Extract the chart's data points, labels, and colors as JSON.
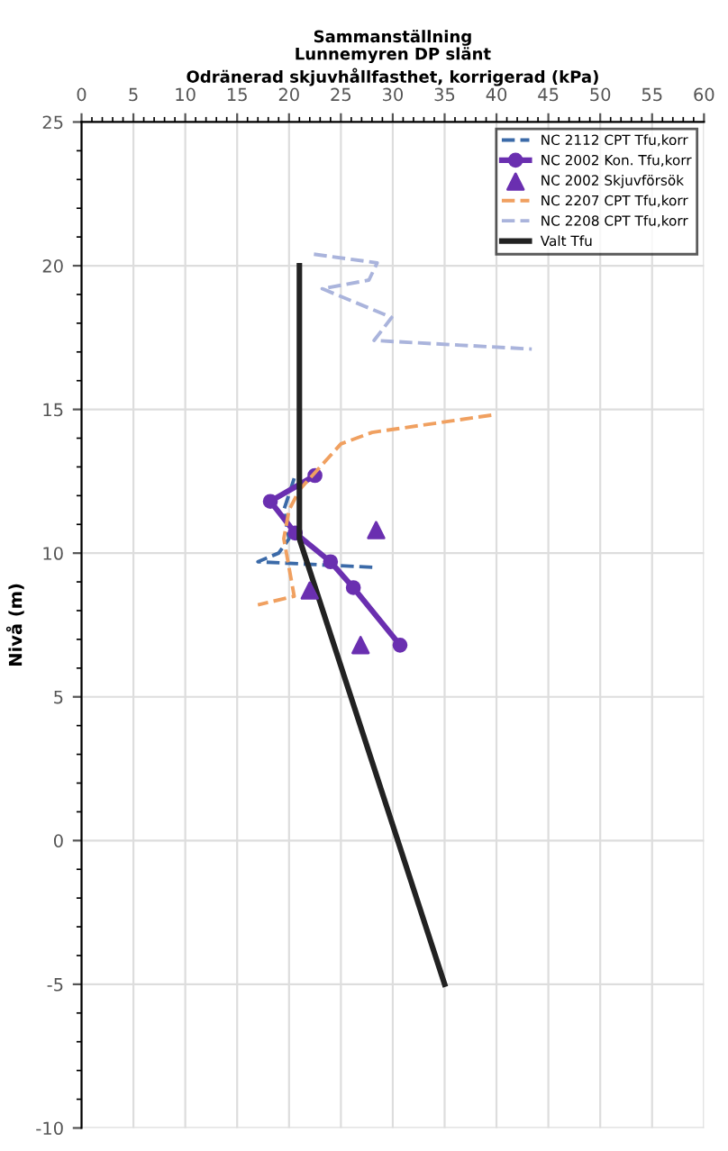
{
  "chart_data": {
    "type": "line",
    "title": "Sammanställning\nLunnemyren DP slänt",
    "xlabel": "Odränerad skjuvhållfasthet, korrigerad (kPa)",
    "ylabel": "Nivå (m)",
    "xlim": [
      0,
      60
    ],
    "xticks": [
      0,
      5,
      10,
      15,
      20,
      25,
      30,
      35,
      40,
      45,
      50,
      55,
      60
    ],
    "ylim": [
      -10,
      25
    ],
    "yticks": [
      -10,
      -5,
      0,
      5,
      10,
      15,
      20,
      25
    ],
    "grid": true,
    "legend": "top right",
    "series": [
      {
        "name": "NC 2112 CPT Tfu,korr",
        "color": "#3b6aa8",
        "line_style": "dashed",
        "marker": "none",
        "x": [
          20.5,
          19.5,
          20,
          19,
          17,
          28.5
        ],
        "values": [
          12.6,
          11.5,
          10.5,
          10,
          9.7,
          9.5
        ]
      },
      {
        "name": "NC 2002 Kon. Tfu,korr",
        "color": "#6a2fb0",
        "line_style": "solid",
        "marker": "circle",
        "x": [
          22.5,
          18.2,
          20.6,
          24,
          26.2,
          30.7
        ],
        "values": [
          12.7,
          11.8,
          10.7,
          9.7,
          8.8,
          6.8
        ]
      },
      {
        "name": "NC 2002 Skjuvförsök",
        "type": "scatter",
        "color": "#6a2fb0",
        "marker": "triangle",
        "x": [
          28.4,
          26.9,
          22
        ],
        "values": [
          10.8,
          6.8,
          8.7
        ]
      },
      {
        "name": "NC 2207 CPT Tfu,korr",
        "color": "#f0a060",
        "line_style": "dashed",
        "marker": "none",
        "x": [
          39.5,
          28,
          25,
          23,
          21,
          20,
          19.5,
          20,
          20.5,
          17
        ],
        "values": [
          14.8,
          14.2,
          13.8,
          13.0,
          12.2,
          11.5,
          10.5,
          9.5,
          8.5,
          8.2
        ]
      },
      {
        "name": "NC 2208 CPT Tfu,korr",
        "color": "#aab4dc",
        "line_style": "dashed",
        "marker": "none",
        "x": [
          22.4,
          28.5,
          27.7,
          23.2,
          29.9,
          28.2,
          43.4
        ],
        "values": [
          20.4,
          20.1,
          19.5,
          19.2,
          18.2,
          17.4,
          17.1
        ]
      },
      {
        "name": "Valt Tfu",
        "color": "#222222",
        "line_style": "solid",
        "marker": "none",
        "x": [
          21,
          21,
          35
        ],
        "values": [
          20,
          10.5,
          -5
        ]
      }
    ]
  }
}
